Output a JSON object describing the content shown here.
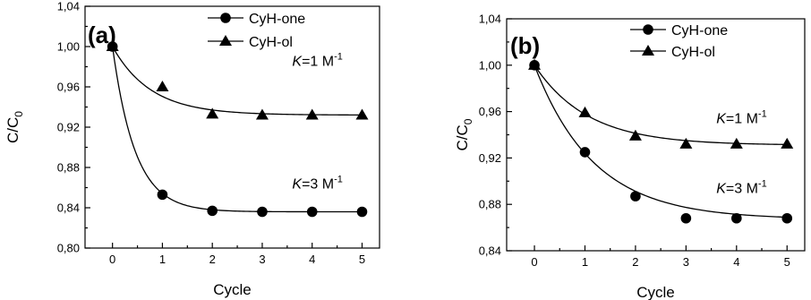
{
  "chart_data": [
    {
      "type": "scatter",
      "panel_label": "(a)",
      "xlabel": "Cycle",
      "ylabel_main": "C/C",
      "ylabel_sub": "0",
      "xlim": [
        -0.55,
        5.35
      ],
      "ylim": [
        0.8,
        1.04
      ],
      "x_ticks": [
        0,
        1,
        2,
        3,
        4,
        5
      ],
      "x_tick_labels": [
        "0",
        "1",
        "2",
        "3",
        "4",
        "5"
      ],
      "y_ticks": [
        0.8,
        0.84,
        0.88,
        0.92,
        0.96,
        1.0,
        1.04
      ],
      "y_tick_labels": [
        "0,80",
        "0,84",
        "0,88",
        "0,92",
        "0,96",
        "1,00",
        "1,04"
      ],
      "legend_position": "top-right",
      "series": [
        {
          "name": "CyH-one",
          "marker": "circle",
          "x": [
            0,
            1,
            2,
            3,
            4,
            5
          ],
          "y": [
            1.0,
            0.853,
            0.837,
            0.836,
            0.836,
            0.836
          ],
          "fit": {
            "y_inf": 0.836,
            "amp": 0.164,
            "rate": 2.2
          },
          "annotation": {
            "italic": "K",
            "text": "=3 M",
            "sup": "-1",
            "at": [
              3.6,
              0.859
            ]
          }
        },
        {
          "name": "CyH-ol",
          "marker": "triangle",
          "x": [
            0,
            1,
            2,
            3,
            4,
            5
          ],
          "y": [
            1.0,
            0.96,
            0.933,
            0.932,
            0.932,
            0.932
          ],
          "fit": {
            "y_inf": 0.932,
            "amp": 0.068,
            "rate": 1.3
          },
          "annotation": {
            "italic": "K",
            "text": "=1 M",
            "sup": "-1",
            "at": [
              3.6,
              0.981
            ]
          }
        }
      ]
    },
    {
      "type": "scatter",
      "panel_label": "(b)",
      "xlabel": "Cycle",
      "ylabel_main": "C/C",
      "ylabel_sub": "0",
      "xlim": [
        -0.55,
        5.35
      ],
      "ylim": [
        0.84,
        1.04
      ],
      "x_ticks": [
        0,
        1,
        2,
        3,
        4,
        5
      ],
      "x_tick_labels": [
        "0",
        "1",
        "2",
        "3",
        "4",
        "5"
      ],
      "y_ticks": [
        0.84,
        0.88,
        0.92,
        0.96,
        1.0,
        1.04
      ],
      "y_tick_labels": [
        "0,84",
        "0,88",
        "0,92",
        "0,96",
        "1,00",
        "1,04"
      ],
      "legend_position": "top-right",
      "series": [
        {
          "name": "CyH-one",
          "marker": "circle",
          "x": [
            0,
            1,
            2,
            3,
            4,
            5
          ],
          "y": [
            1.0,
            0.925,
            0.887,
            0.868,
            0.868,
            0.868
          ],
          "fit": {
            "y_inf": 0.867,
            "amp": 0.133,
            "rate": 0.85
          },
          "annotation": {
            "italic": "K",
            "text": "=3 M",
            "sup": "-1",
            "at": [
              3.6,
              0.89
            ]
          }
        },
        {
          "name": "CyH-ol",
          "marker": "triangle",
          "x": [
            0,
            1,
            2,
            3,
            4,
            5
          ],
          "y": [
            1.0,
            0.959,
            0.939,
            0.932,
            0.932,
            0.932
          ],
          "fit": {
            "y_inf": 0.931,
            "amp": 0.069,
            "rate": 0.95
          },
          "annotation": {
            "italic": "K",
            "text": "=1 M",
            "sup": "-1",
            "at": [
              3.6,
              0.95
            ]
          }
        }
      ]
    }
  ]
}
